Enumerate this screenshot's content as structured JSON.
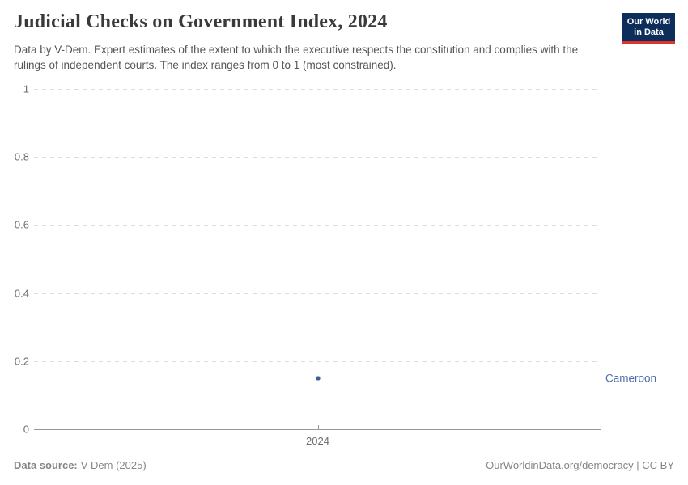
{
  "header": {
    "title": "Judicial Checks on Government Index, 2024",
    "logo": {
      "line1": "Our World",
      "line2": "in Data"
    }
  },
  "subtitle": "Data by V-Dem. Expert estimates of the extent to which the executive respects the constitution and complies with the rulings of independent courts. The index ranges from 0 to 1 (most constrained).",
  "footer": {
    "source_label": "Data source:",
    "source_value": "V-Dem (2025)",
    "credit": "OurWorldinData.org/democracy | CC BY"
  },
  "colors": {
    "accent_label": "#4c6ca8",
    "point": "#3d5e98",
    "logo_bg": "#0d2e5b",
    "logo_red": "#dc352c",
    "grid": "#dcdcdc",
    "axis": "#999999",
    "tick_text": "#6e6e6e"
  },
  "chart_data": {
    "type": "scatter",
    "title": "Judicial Checks on Government Index, 2024",
    "subtitle": "Data by V-Dem. Expert estimates of the extent to which the executive respects the constitution and complies with the rulings of independent courts. The index ranges from 0 to 1 (most constrained).",
    "series": [
      {
        "name": "Cameroon",
        "x": [
          2024
        ],
        "y": [
          0.15
        ]
      }
    ],
    "entity_label": "Cameroon",
    "xticks": [
      2024
    ],
    "xtick_labels": [
      "2024"
    ],
    "yticks": [
      0,
      0.2,
      0.4,
      0.6,
      0.8,
      1
    ],
    "ytick_labels": [
      "0",
      "0.2",
      "0.4",
      "0.6",
      "0.8",
      "1"
    ],
    "xlim": [
      2023.5,
      2024.5
    ],
    "ylim": [
      0,
      1
    ],
    "xlabel": "",
    "ylabel": "",
    "grid": "horizontal-dashed",
    "legend_position": "right-of-point"
  }
}
